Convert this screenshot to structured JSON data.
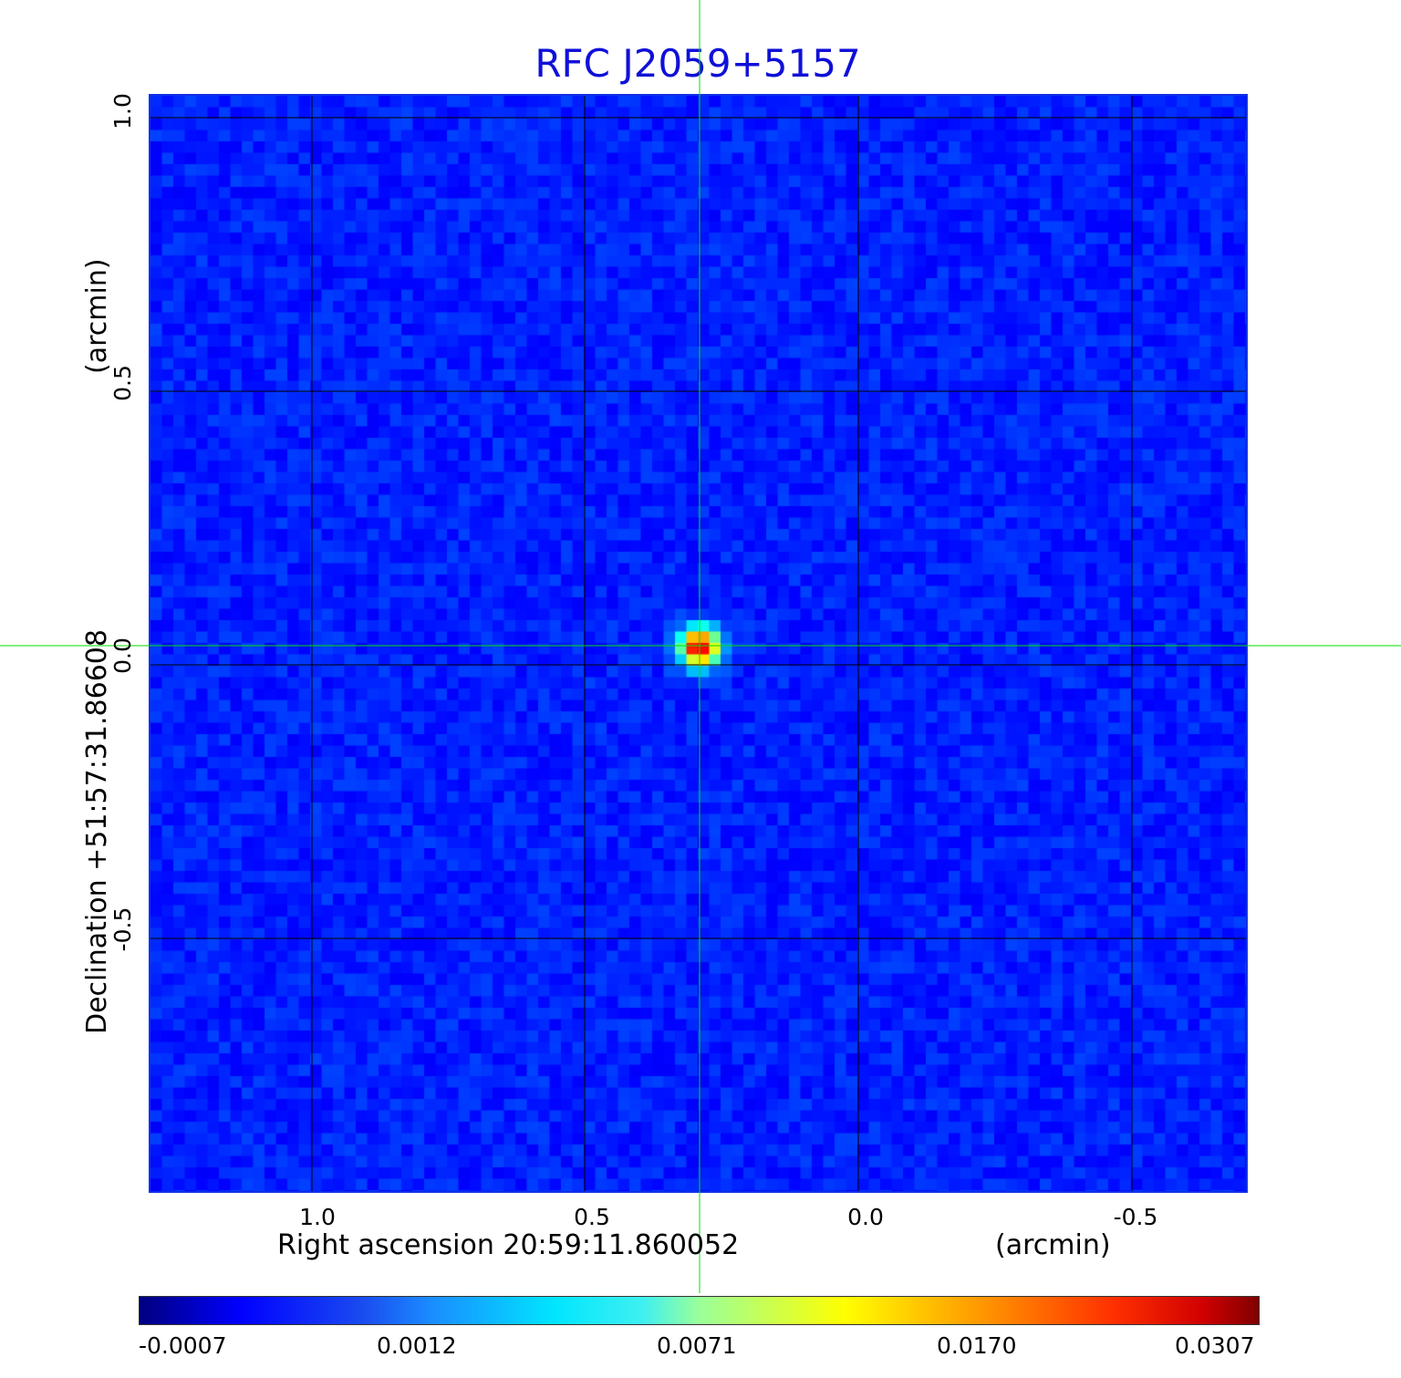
{
  "title": "RFC J2059+5157",
  "x_axis": {
    "label": "Right ascension  20:59:11.860052",
    "unit": "(arcmin)",
    "ticks": [
      "1.0",
      "0.5",
      "0.0",
      "-0.5"
    ]
  },
  "y_axis": {
    "label": "Declination  +51:57:31.86608",
    "unit": "(arcmin)",
    "ticks": [
      "1.0",
      "0.5",
      "0.0",
      "-0.5"
    ]
  },
  "colorbar": {
    "ticks": [
      "-0.0007",
      "0.0012",
      "0.0071",
      "0.0170",
      "0.0307"
    ],
    "colormap": "jet"
  },
  "colors": {
    "title": "#1010d8",
    "frame": "#1030e8",
    "crosshair": "#00e000",
    "grid": "#000000"
  }
}
